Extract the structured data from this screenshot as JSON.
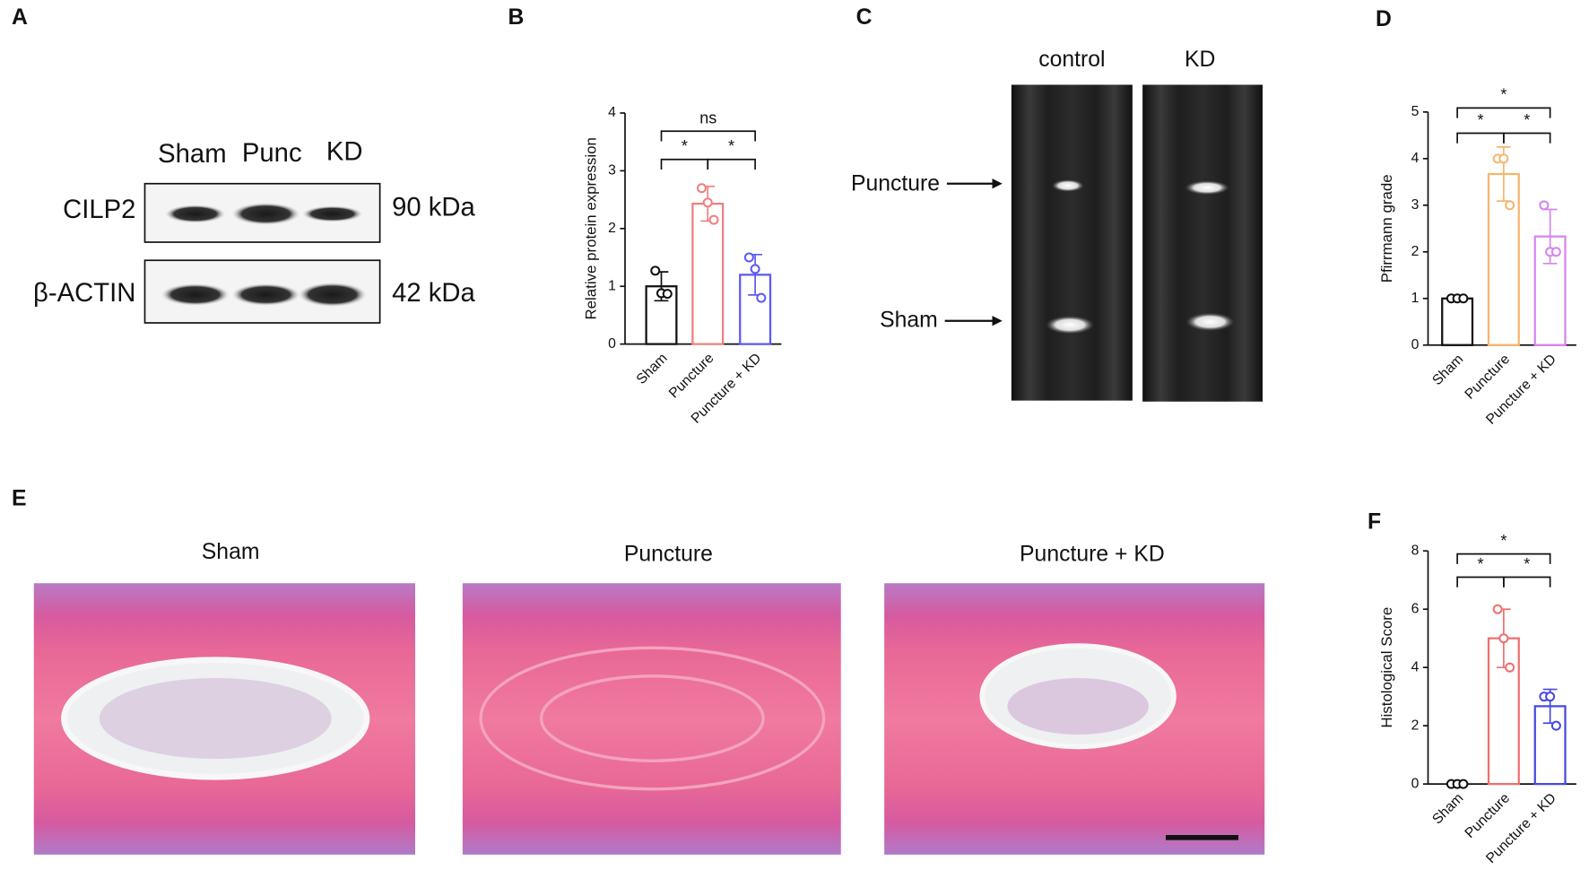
{
  "panel_labels": [
    "A",
    "B",
    "C",
    "D",
    "E",
    "F"
  ],
  "blot": {
    "lanes": [
      "Sham",
      "Punc",
      "KD"
    ],
    "rows": [
      {
        "protein": "CILP2",
        "size": "90 kDa"
      },
      {
        "protein": "β-ACTIN",
        "size": "42 kDa"
      }
    ]
  },
  "mri": {
    "columns": [
      "control",
      "KD"
    ],
    "arrows": [
      "Puncture",
      "Sham"
    ]
  },
  "histology": {
    "titles": [
      "Sham",
      "Puncture",
      "Puncture + KD"
    ]
  },
  "chart_data": [
    {
      "type": "bar",
      "y_label": "Relative protein expression",
      "categories": [
        "Sham",
        "Puncture",
        "Puncture + KD"
      ],
      "values": [
        1.0,
        2.43,
        1.2
      ],
      "errors": [
        0.25,
        0.3,
        0.35
      ],
      "points": [
        [
          1.27,
          0.88,
          0.87
        ],
        [
          2.7,
          2.45,
          2.15
        ],
        [
          1.5,
          1.3,
          0.8
        ]
      ],
      "colors": [
        "#111111",
        "#ef7f7f",
        "#5a5af0"
      ],
      "ylim": [
        0,
        4
      ],
      "yticks": [
        0,
        1,
        2,
        3,
        4
      ],
      "comparisons": [
        {
          "groups": [
            "Sham",
            "Puncture"
          ],
          "label": "*"
        },
        {
          "groups": [
            "Puncture",
            "Puncture + KD"
          ],
          "label": "*"
        },
        {
          "groups": [
            "Sham",
            "Puncture + KD"
          ],
          "label": "ns"
        }
      ]
    },
    {
      "type": "bar",
      "y_label": "Pfirrmann grade",
      "categories": [
        "Sham",
        "Puncture",
        "Puncture + KD"
      ],
      "values": [
        1,
        3.67,
        2.33
      ],
      "errors": [
        0,
        0.58,
        0.58
      ],
      "points": [
        [
          1,
          1,
          1
        ],
        [
          4,
          4,
          3
        ],
        [
          3,
          2,
          2
        ]
      ],
      "colors": [
        "#111111",
        "#f5b66e",
        "#d585ef"
      ],
      "ylim": [
        0,
        5
      ],
      "yticks": [
        0,
        1,
        2,
        3,
        4,
        5
      ],
      "comparisons": [
        {
          "groups": [
            "Sham",
            "Puncture"
          ],
          "label": "*"
        },
        {
          "groups": [
            "Puncture",
            "Puncture + KD"
          ],
          "label": "*"
        },
        {
          "groups": [
            "Sham",
            "Puncture + KD"
          ],
          "label": "*"
        }
      ]
    },
    {
      "type": "bar",
      "y_label": "Histological Score",
      "categories": [
        "Sham",
        "Puncture",
        "Puncture + KD"
      ],
      "values": [
        0,
        5,
        2.67
      ],
      "errors": [
        0,
        1,
        0.58
      ],
      "points": [
        [
          0,
          0,
          0
        ],
        [
          6,
          5,
          4
        ],
        [
          3,
          3,
          2
        ]
      ],
      "colors": [
        "#111111",
        "#ef6f6f",
        "#4848e0"
      ],
      "ylim": [
        0,
        8
      ],
      "yticks": [
        0,
        2,
        4,
        6,
        8
      ],
      "comparisons": [
        {
          "groups": [
            "Sham",
            "Puncture"
          ],
          "label": "*"
        },
        {
          "groups": [
            "Puncture",
            "Puncture + KD"
          ],
          "label": "*"
        },
        {
          "groups": [
            "Sham",
            "Puncture + KD"
          ],
          "label": "*"
        }
      ]
    }
  ]
}
